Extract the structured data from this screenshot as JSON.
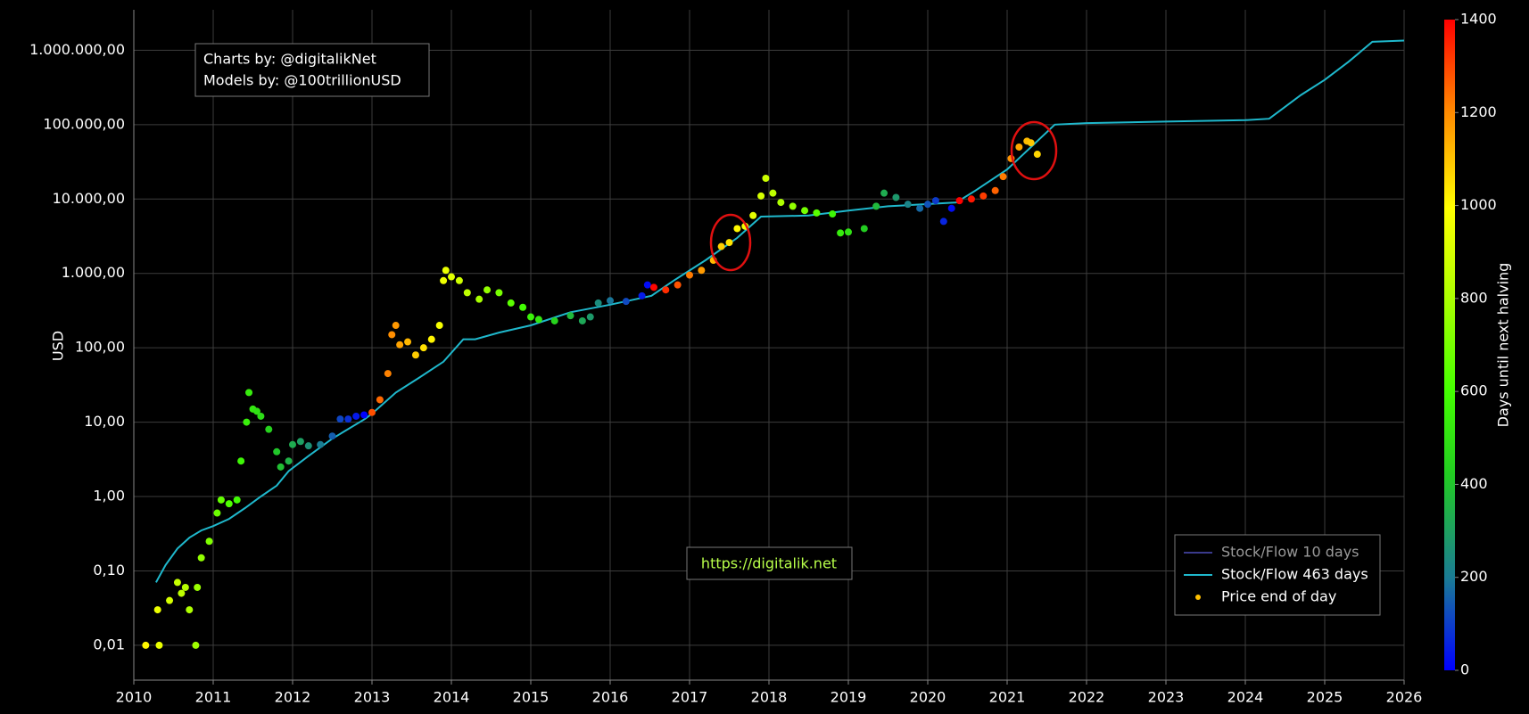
{
  "chart_data": {
    "type": "scatter",
    "y_label": "USD",
    "log_y": true,
    "grid": true,
    "legend": "lower right",
    "xlim": [
      2010,
      2026
    ],
    "xticks": [
      2010,
      2011,
      2012,
      2013,
      2014,
      2015,
      2016,
      2017,
      2018,
      2019,
      2020,
      2021,
      2022,
      2023,
      2024,
      2025,
      2026
    ],
    "ylim": [
      0.0034,
      3500000
    ],
    "yticks": [
      {
        "value": 0.01,
        "label": "0,01"
      },
      {
        "value": 0.1,
        "label": "0,10"
      },
      {
        "value": 1,
        "label": "1,00"
      },
      {
        "value": 10,
        "label": "10,00"
      },
      {
        "value": 100,
        "label": "100,00"
      },
      {
        "value": 1000,
        "label": "1.000,00"
      },
      {
        "value": 10000,
        "label": "10.000,00"
      },
      {
        "value": 100000,
        "label": "100.000,00"
      },
      {
        "value": 1000000,
        "label": "1.000.000,00"
      }
    ],
    "annotations": [
      "Charts by: @digitalikNet",
      "Models by: @100trillionUSD",
      "https://digitalik.net"
    ],
    "colorbar": {
      "title": "Days until next halving",
      "range": [
        0,
        1400
      ],
      "ticks": [
        0,
        200,
        400,
        600,
        800,
        1000,
        1200,
        1400
      ],
      "colorscale": [
        [
          0,
          "#0000ff"
        ],
        [
          0.14,
          "#1a7a96"
        ],
        [
          0.3,
          "#22cc22"
        ],
        [
          0.43,
          "#44ff00"
        ],
        [
          0.57,
          "#aaff00"
        ],
        [
          0.71,
          "#ffff00"
        ],
        [
          0.86,
          "#ff8800"
        ],
        [
          1,
          "#ff0000"
        ]
      ]
    },
    "series": [
      {
        "name": "Stock/Flow 10 days",
        "type": "line",
        "color": "#3a3a8c",
        "x": [],
        "values": []
      },
      {
        "name": "Stock/Flow 463 days",
        "type": "line",
        "color": "#1fb8cc",
        "x": [
          2010.28,
          2010.4,
          2010.55,
          2010.7,
          2010.85,
          2011.0,
          2011.2,
          2011.4,
          2011.6,
          2011.8,
          2011.95,
          2012.2,
          2012.5,
          2012.91,
          2013.0,
          2013.3,
          2013.6,
          2013.9,
          2014.15,
          2014.3,
          2014.6,
          2015.0,
          2015.5,
          2016.0,
          2016.52,
          2016.8,
          2017.2,
          2017.6,
          2017.9,
          2018.5,
          2019.0,
          2019.5,
          2020.36,
          2020.6,
          2021.0,
          2021.3,
          2021.6,
          2022.0,
          2023.0,
          2024.0,
          2024.3,
          2024.7,
          2025.0,
          2025.3,
          2025.6,
          2026.0
        ],
        "values": [
          0.07,
          0.12,
          0.2,
          0.28,
          0.35,
          0.4,
          0.5,
          0.7,
          1.0,
          1.4,
          2.2,
          3.5,
          6,
          11,
          13,
          25,
          40,
          65,
          130,
          130,
          160,
          200,
          300,
          380,
          500,
          800,
          1500,
          3000,
          5800,
          6000,
          7000,
          8000,
          9000,
          13000,
          25000,
          50000,
          100000,
          105000,
          110000,
          115000,
          120000,
          250000,
          400000,
          700000,
          1300000,
          1350000
        ]
      },
      {
        "name": "Price end of day",
        "type": "scatter",
        "color": "#ffc000",
        "x": [
          2010.15,
          2010.3,
          2010.32,
          2010.45,
          2010.55,
          2010.6,
          2010.65,
          2010.7,
          2010.78,
          2010.8,
          2010.85,
          2010.95,
          2011.05,
          2011.1,
          2011.2,
          2011.3,
          2011.35,
          2011.42,
          2011.45,
          2011.5,
          2011.55,
          2011.6,
          2011.7,
          2011.8,
          2011.85,
          2011.95,
          2012.0,
          2012.1,
          2012.2,
          2012.35,
          2012.5,
          2012.6,
          2012.7,
          2012.8,
          2012.9,
          2013.0,
          2013.1,
          2013.2,
          2013.25,
          2013.3,
          2013.35,
          2013.45,
          2013.55,
          2013.65,
          2013.75,
          2013.85,
          2013.9,
          2013.93,
          2014.0,
          2014.1,
          2014.2,
          2014.35,
          2014.45,
          2014.6,
          2014.75,
          2014.9,
          2015.0,
          2015.1,
          2015.3,
          2015.5,
          2015.65,
          2015.75,
          2015.85,
          2016.0,
          2016.2,
          2016.4,
          2016.47,
          2016.55,
          2016.7,
          2016.85,
          2017.0,
          2017.15,
          2017.3,
          2017.4,
          2017.5,
          2017.6,
          2017.7,
          2017.8,
          2017.9,
          2017.96,
          2018.05,
          2018.15,
          2018.3,
          2018.45,
          2018.6,
          2018.8,
          2018.9,
          2019.0,
          2019.2,
          2019.35,
          2019.45,
          2019.6,
          2019.75,
          2019.9,
          2020.0,
          2020.1,
          2020.2,
          2020.3,
          2020.4,
          2020.55,
          2020.7,
          2020.85,
          2020.95,
          2021.05,
          2021.15,
          2021.25,
          2021.3,
          2021.38
        ],
        "values": [
          0.01,
          0.03,
          0.01,
          0.04,
          0.07,
          0.05,
          0.06,
          0.03,
          0.01,
          0.06,
          0.15,
          0.25,
          0.6,
          0.9,
          0.8,
          0.9,
          3,
          10,
          25,
          15,
          14,
          12,
          8,
          4,
          2.5,
          3,
          5,
          5.5,
          4.8,
          5,
          6.5,
          11,
          11,
          12,
          12.5,
          13.5,
          20,
          45,
          150,
          200,
          110,
          120,
          80,
          100,
          130,
          200,
          800,
          1100,
          900,
          800,
          550,
          450,
          600,
          550,
          400,
          350,
          260,
          240,
          230,
          270,
          230,
          260,
          400,
          430,
          420,
          500,
          700,
          650,
          600,
          700,
          950,
          1100,
          1500,
          2300,
          2600,
          4000,
          4300,
          6000,
          11000,
          19000,
          12000,
          9000,
          8000,
          7000,
          6500,
          6300,
          3500,
          3600,
          4000,
          8000,
          12000,
          10500,
          8500,
          7500,
          8500,
          9500,
          5000,
          7500,
          9500,
          10000,
          11000,
          13000,
          20000,
          35000,
          50000,
          60000,
          57000,
          40000
        ],
        "color_values": [
          1007,
          953,
          945,
          898,
          861,
          843,
          825,
          807,
          777,
          770,
          752,
          715,
          679,
          661,
          624,
          588,
          569,
          544,
          533,
          515,
          496,
          478,
          442,
          405,
          387,
          350,
          332,
          296,
          259,
          204,
          150,
          113,
          77,
          40,
          4,
          1285,
          1248,
          1212,
          1194,
          1175,
          1157,
          1121,
          1084,
          1048,
          1011,
          975,
          956,
          945,
          920,
          883,
          847,
          792,
          756,
          701,
          646,
          591,
          555,
          518,
          445,
          372,
          318,
          281,
          245,
          190,
          117,
          44,
          18,
          1391,
          1336,
          1281,
          1226,
          1172,
          1117,
          1080,
          1044,
          1007,
          971,
          934,
          898,
          876,
          843,
          807,
          752,
          697,
          642,
          569,
          533,
          496,
          423,
          369,
          332,
          277,
          223,
          168,
          131,
          95,
          58,
          22,
          1424,
          1369,
          1314,
          1259,
          1223,
          1186,
          1150,
          1113,
          1095,
          1066
        ]
      }
    ]
  }
}
